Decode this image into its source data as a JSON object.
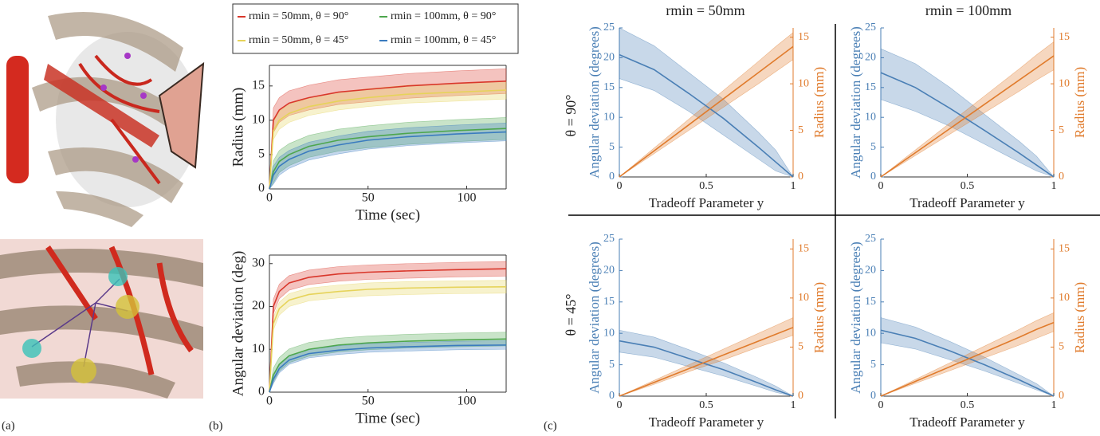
{
  "panel_labels": [
    "(a)",
    "(b)",
    "(c)"
  ],
  "column_headers": [
    "rmin = 50mm",
    "rmin = 100mm"
  ],
  "row_headers": [
    "θ = 90°",
    "θ = 45°"
  ],
  "chart_data": [
    {
      "type": "line",
      "ylabel": "Radius (mm)",
      "xlabel": "Time (sec)",
      "legend": "top",
      "box": true,
      "x": [
        0,
        2,
        5,
        10,
        20,
        35,
        50,
        70,
        95,
        120
      ],
      "xlim": [
        0,
        120
      ],
      "xticks": [
        0,
        50,
        100
      ],
      "ylim": [
        0,
        18
      ],
      "yticks": [
        0,
        5,
        10,
        15
      ],
      "series": [
        {
          "name": "rmin = 50mm,  θ = 90°",
          "color": "#d9372b",
          "values": [
            0,
            10,
            11.5,
            12.5,
            13.3,
            14.1,
            14.5,
            15,
            15.4,
            15.7
          ],
          "lower": [
            0,
            8.2,
            9.7,
            10.7,
            11.5,
            12.3,
            12.7,
            13.2,
            13.6,
            13.9
          ],
          "upper": [
            0,
            11.8,
            13.3,
            14.3,
            15.1,
            15.9,
            16.3,
            16.8,
            17.2,
            17.5
          ]
        },
        {
          "name": "rmin = 100mm,  θ = 90°",
          "color": "#4da64d",
          "values": [
            0,
            2.5,
            4,
            5,
            6.2,
            7.1,
            7.6,
            8.1,
            8.5,
            8.8
          ],
          "lower": [
            0,
            0.9,
            2.4,
            3.4,
            4.6,
            5.5,
            6,
            6.5,
            6.9,
            7.2
          ],
          "upper": [
            0,
            4.1,
            5.6,
            6.6,
            7.8,
            8.7,
            9.2,
            9.7,
            10.1,
            10.4
          ]
        },
        {
          "name": "rmin = 50mm,  θ = 45°",
          "color": "#e6d35a",
          "values": [
            0,
            8.5,
            10,
            11,
            12,
            12.8,
            13.3,
            13.8,
            14.1,
            14.4
          ],
          "lower": [
            0,
            7.2,
            8.7,
            9.7,
            10.7,
            11.5,
            12,
            12.5,
            12.8,
            13.1
          ],
          "upper": [
            0,
            9.8,
            11.3,
            12.3,
            13.3,
            14.1,
            14.6,
            15.1,
            15.4,
            15.7
          ]
        },
        {
          "name": "rmin = 100mm,  θ = 45°",
          "color": "#3a7bbf",
          "values": [
            0,
            2,
            3.3,
            4.3,
            5.5,
            6.4,
            7.1,
            7.6,
            8,
            8.3
          ],
          "lower": [
            0,
            0.7,
            2,
            3,
            4.2,
            5.1,
            5.8,
            6.3,
            6.7,
            7
          ],
          "upper": [
            0,
            3.3,
            4.6,
            5.6,
            6.8,
            7.7,
            8.4,
            8.9,
            9.3,
            9.6
          ]
        }
      ]
    },
    {
      "type": "line",
      "ylabel": "Angular deviation (deg)",
      "xlabel": "Time (sec)",
      "box": true,
      "x": [
        0,
        2,
        5,
        10,
        20,
        35,
        50,
        70,
        95,
        120
      ],
      "xlim": [
        0,
        120
      ],
      "xticks": [
        0,
        50,
        100
      ],
      "ylim": [
        0,
        32
      ],
      "yticks": [
        0,
        10,
        20,
        30
      ],
      "series": [
        {
          "color": "#d9372b",
          "values": [
            0,
            20,
            23.5,
            25.5,
            26.8,
            27.6,
            28,
            28.3,
            28.6,
            28.8
          ],
          "lower": [
            0,
            18.3,
            21.8,
            23.8,
            25.1,
            25.9,
            26.3,
            26.6,
            26.9,
            27.1
          ],
          "upper": [
            0,
            21.7,
            25.2,
            27.2,
            28.5,
            29.3,
            29.7,
            30,
            30.3,
            30.5
          ]
        },
        {
          "color": "#e6d35a",
          "values": [
            0,
            16,
            19.5,
            21.5,
            22.8,
            23.5,
            24,
            24.3,
            24.5,
            24.6
          ],
          "lower": [
            0,
            14.5,
            18,
            20,
            21.3,
            22,
            22.5,
            22.8,
            23,
            23.1
          ],
          "upper": [
            0,
            17.5,
            21,
            23,
            24.3,
            25,
            25.5,
            25.8,
            26,
            26.1
          ]
        },
        {
          "color": "#4da64d",
          "values": [
            0,
            4,
            6.5,
            8.5,
            10,
            11,
            11.5,
            11.9,
            12.2,
            12.4
          ],
          "lower": [
            0,
            2.4,
            4.9,
            6.9,
            8.4,
            9.4,
            9.9,
            10.3,
            10.6,
            10.8
          ],
          "upper": [
            0,
            5.6,
            8.1,
            10.1,
            11.6,
            12.6,
            13.1,
            13.5,
            13.8,
            14
          ]
        },
        {
          "color": "#3a7bbf",
          "values": [
            0,
            3,
            5.5,
            7.5,
            9,
            9.8,
            10.3,
            10.6,
            10.9,
            11
          ],
          "lower": [
            0,
            2,
            4.5,
            6.5,
            8,
            8.8,
            9.3,
            9.6,
            9.9,
            10
          ],
          "upper": [
            0,
            4,
            6.5,
            8.5,
            10,
            10.8,
            11.3,
            11.6,
            11.9,
            12
          ]
        }
      ]
    },
    {
      "type": "line",
      "ylabel": "Angular deviation (degrees)",
      "y2label": "Radius (mm)",
      "xlabel": "Tradeoff Parameter  y",
      "x": [
        0,
        0.2,
        0.4,
        0.6,
        0.8,
        0.9,
        1
      ],
      "xlim": [
        0,
        1
      ],
      "xticks": [
        0,
        0.5,
        1
      ],
      "ylim": [
        0,
        25
      ],
      "yticks": [
        0,
        5,
        10,
        15,
        20,
        25
      ],
      "y2lim": [
        0,
        16
      ],
      "y2ticks": [
        0,
        5,
        10,
        15
      ],
      "series": [
        {
          "color": "#4a7fb5",
          "values": [
            20.5,
            18,
            14,
            9.8,
            5,
            2.5,
            0
          ],
          "lower": [
            16.5,
            14.5,
            11,
            7,
            3,
            1,
            0
          ],
          "upper": [
            25,
            22,
            17.5,
            13,
            7.5,
            4.5,
            0
          ]
        },
        {
          "color": "#e07b2c",
          "axis": "y2",
          "values": [
            0,
            2.8,
            5.6,
            8.4,
            11.2,
            12.6,
            14
          ],
          "lower": [
            0,
            2.5,
            5,
            7.5,
            10,
            11.3,
            12.6
          ],
          "upper": [
            0,
            3.1,
            6.2,
            9.3,
            12.4,
            14,
            15.5
          ]
        }
      ]
    },
    {
      "type": "line",
      "ylabel": "Angular deviation (degrees)",
      "y2label": "Radius (mm)",
      "xlabel": "Tradeoff Parameter  y",
      "x": [
        0,
        0.2,
        0.4,
        0.6,
        0.8,
        0.9,
        1
      ],
      "xlim": [
        0,
        1
      ],
      "xticks": [
        0,
        0.5,
        1
      ],
      "ylim": [
        0,
        25
      ],
      "yticks": [
        0,
        5,
        10,
        15,
        20,
        25
      ],
      "y2lim": [
        0,
        16
      ],
      "y2ticks": [
        0,
        5,
        10,
        15
      ],
      "series": [
        {
          "color": "#4a7fb5",
          "values": [
            17.5,
            15,
            11.5,
            7.8,
            4,
            2,
            0
          ],
          "lower": [
            13,
            11,
            8.5,
            5.5,
            2.5,
            1,
            0
          ],
          "upper": [
            21.5,
            19,
            15,
            10.5,
            6,
            3.5,
            0
          ]
        },
        {
          "color": "#e07b2c",
          "axis": "y2",
          "values": [
            0,
            2.6,
            5.2,
            7.8,
            10.4,
            11.7,
            13
          ],
          "lower": [
            0,
            2.3,
            4.6,
            6.9,
            9.2,
            10.4,
            11.5
          ],
          "upper": [
            0,
            2.9,
            5.8,
            8.7,
            11.6,
            13.1,
            14.5
          ]
        }
      ]
    },
    {
      "type": "line",
      "ylabel": "Angular deviation (degrees)",
      "y2label": "Radius (mm)",
      "xlabel": "Tradeoff Parameter  y",
      "x": [
        0,
        0.2,
        0.4,
        0.6,
        0.8,
        0.9,
        1
      ],
      "xlim": [
        0,
        1
      ],
      "xticks": [
        0,
        0.5,
        1
      ],
      "ylim": [
        0,
        25
      ],
      "yticks": [
        0,
        5,
        10,
        15,
        20,
        25
      ],
      "y2lim": [
        0,
        16
      ],
      "y2ticks": [
        0,
        5,
        10,
        15
      ],
      "series": [
        {
          "color": "#4a7fb5",
          "values": [
            8.8,
            7.8,
            6,
            4.2,
            2.1,
            1,
            0
          ],
          "lower": [
            7,
            6.2,
            4.7,
            3.2,
            1.5,
            0.6,
            0
          ],
          "upper": [
            10.5,
            9.4,
            7.4,
            5.3,
            2.9,
            1.6,
            0
          ]
        },
        {
          "color": "#e07b2c",
          "axis": "y2",
          "values": [
            0,
            1.4,
            2.8,
            4.2,
            5.6,
            6.3,
            7
          ],
          "lower": [
            0,
            1.2,
            2.5,
            3.7,
            5,
            5.6,
            6.2
          ],
          "upper": [
            0,
            1.6,
            3.2,
            4.8,
            6.4,
            7.2,
            8
          ]
        }
      ]
    },
    {
      "type": "line",
      "ylabel": "Angular deviation (degrees)",
      "y2label": "Radius (mm)",
      "xlabel": "Tradeoff Parameter  y",
      "x": [
        0,
        0.2,
        0.4,
        0.6,
        0.8,
        0.9,
        1
      ],
      "xlim": [
        0,
        1
      ],
      "xticks": [
        0,
        0.5,
        1
      ],
      "ylim": [
        0,
        25
      ],
      "yticks": [
        0,
        5,
        10,
        15,
        20,
        25
      ],
      "y2lim": [
        0,
        16
      ],
      "y2ticks": [
        0,
        5,
        10,
        15
      ],
      "series": [
        {
          "color": "#4a7fb5",
          "values": [
            10.5,
            9.2,
            7.2,
            5,
            2.6,
            1.3,
            0
          ],
          "lower": [
            8.5,
            7.5,
            5.8,
            4,
            2,
            1,
            0
          ],
          "upper": [
            12.5,
            11,
            8.7,
            6.2,
            3.4,
            2,
            0
          ]
        },
        {
          "color": "#e07b2c",
          "axis": "y2",
          "values": [
            0,
            1.5,
            3,
            4.5,
            6,
            6.8,
            7.5
          ],
          "lower": [
            0,
            1.3,
            2.6,
            3.9,
            5.2,
            5.9,
            6.6
          ],
          "upper": [
            0,
            1.7,
            3.4,
            5.1,
            6.8,
            7.7,
            8.5
          ]
        }
      ]
    }
  ]
}
